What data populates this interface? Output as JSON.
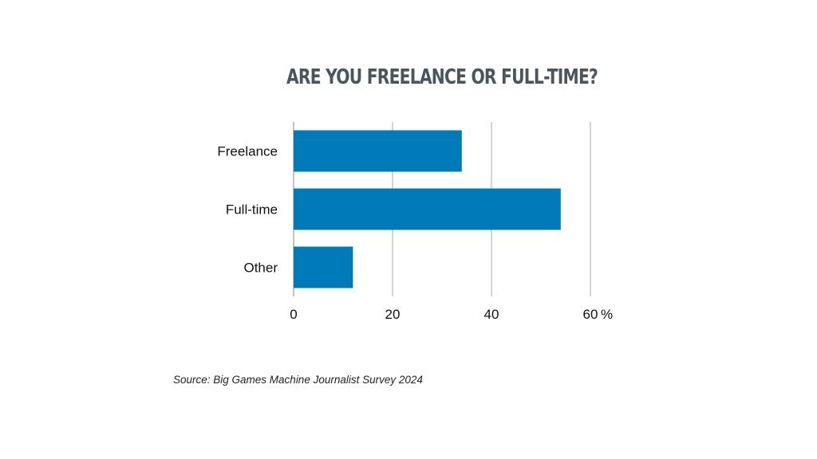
{
  "chart_data": {
    "type": "bar",
    "orientation": "horizontal",
    "title": "ARE YOU FREELANCE OR FULL-TIME?",
    "categories": [
      "Freelance",
      "Full-time",
      "Other"
    ],
    "values": [
      34,
      54,
      12
    ],
    "xlim": [
      0,
      60
    ],
    "x_ticks": [
      0,
      20,
      40,
      60
    ],
    "x_tick_labels": [
      "0",
      "20",
      "40",
      "60"
    ],
    "unit": "%",
    "grid": "vertical",
    "legend": "none",
    "bar_color": "#007ab8"
  },
  "source": "Source: Big Games Machine Journalist Survey 2024"
}
